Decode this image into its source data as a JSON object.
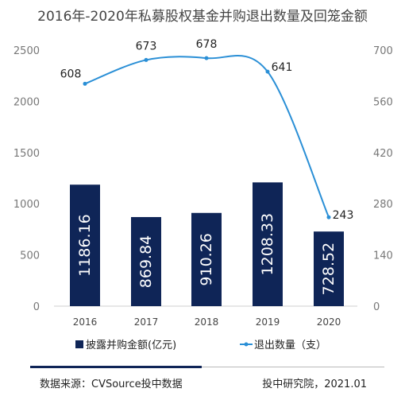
{
  "chart_data": {
    "type": "bar+line",
    "title": "2016年-2020年私募股权基金并购退出数量及回笼金额",
    "categories": [
      "2016",
      "2017",
      "2018",
      "2019",
      "2020"
    ],
    "series": [
      {
        "name": "披露并购金额(亿元)",
        "type": "bar",
        "axis": "left",
        "values": [
          1186.16,
          869.84,
          910.26,
          1208.33,
          728.52
        ],
        "labels": [
          "1186.16",
          "869.84",
          "910.26",
          "1208.33",
          "728.52"
        ]
      },
      {
        "name": "退出数量（支）",
        "type": "line",
        "axis": "right",
        "values": [
          608,
          673,
          678,
          641,
          243
        ],
        "labels": [
          "608",
          "673",
          "678",
          "641",
          "243"
        ]
      }
    ],
    "left_axis": {
      "ylim": [
        0,
        2500
      ],
      "ticks": [
        "0",
        "500",
        "1000",
        "1500",
        "2000",
        "2500"
      ]
    },
    "right_axis": {
      "ylim": [
        0,
        700
      ],
      "ticks": [
        "0",
        "140",
        "280",
        "420",
        "560",
        "700"
      ]
    },
    "grid": false,
    "legend_position": "bottom",
    "colors": {
      "bar": "#0f2557",
      "line": "#2a8fd6",
      "axis_text": "#777777",
      "title": "#444444"
    }
  },
  "footer": {
    "source": "数据来源：CVSource投中数据",
    "credit": "投中研究院，2021.01"
  }
}
